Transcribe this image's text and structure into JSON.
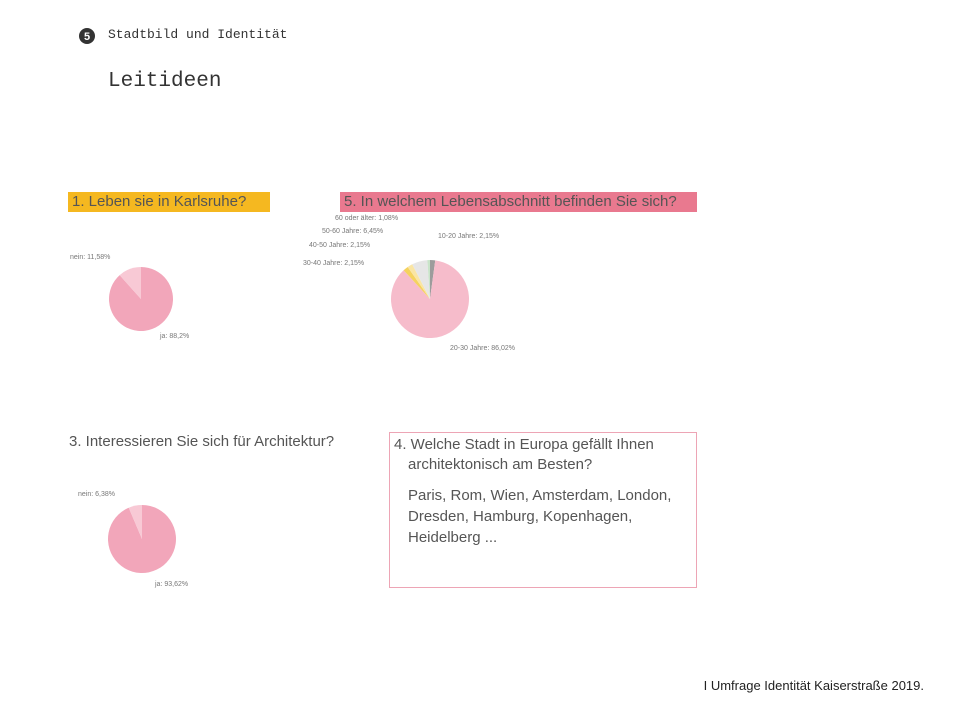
{
  "header": {
    "badge": "5",
    "section": "Stadtbild und Identität",
    "title": "Leitideen"
  },
  "chart_data": [
    {
      "type": "pie",
      "title": "1. Leben sie in Karlsruhe?",
      "values": [
        88.2,
        11.58
      ],
      "value_labels": [
        "ja: 88,2%",
        "nein: 11,58%"
      ],
      "colors": [
        "#f2a6ba",
        "#f8c9d5"
      ]
    },
    {
      "type": "pie",
      "title": "5. In welchem Lebensabschnitt befinden Sie sich?",
      "values": [
        2.15,
        86.02,
        2.15,
        2.15,
        6.45,
        1.08
      ],
      "value_labels": [
        "10-20 Jahre: 2,15%",
        "20-30 Jahre: 86,02%",
        "30-40 Jahre: 2,15%",
        "40-50 Jahre: 2,15%",
        "50-60 Jahre: 6,45%",
        "60 oder älter: 1,08%"
      ],
      "colors": [
        "#9c9c9c",
        "#f6bccb",
        "#f5d25e",
        "#fae5a3",
        "#e6e6e6",
        "#c9e4c9"
      ]
    },
    {
      "type": "pie",
      "title": "3. Interessieren Sie sich für Architektur?",
      "values": [
        93.62,
        6.38
      ],
      "value_labels": [
        "ja: 93,62%",
        "nein: 6,38%"
      ],
      "colors": [
        "#f2a6ba",
        "#f8c9d5"
      ]
    }
  ],
  "question4": {
    "title": "4. Welche Stadt in Europa gefällt Ihnen architektonisch am Besten?",
    "answer": "Paris, Rom, Wien, Amsterdam, London, Dresden, Hamburg, Kopenhagen, Heidelberg ..."
  },
  "footer": "I Umfrage Identität Kaiserstraße 2019."
}
